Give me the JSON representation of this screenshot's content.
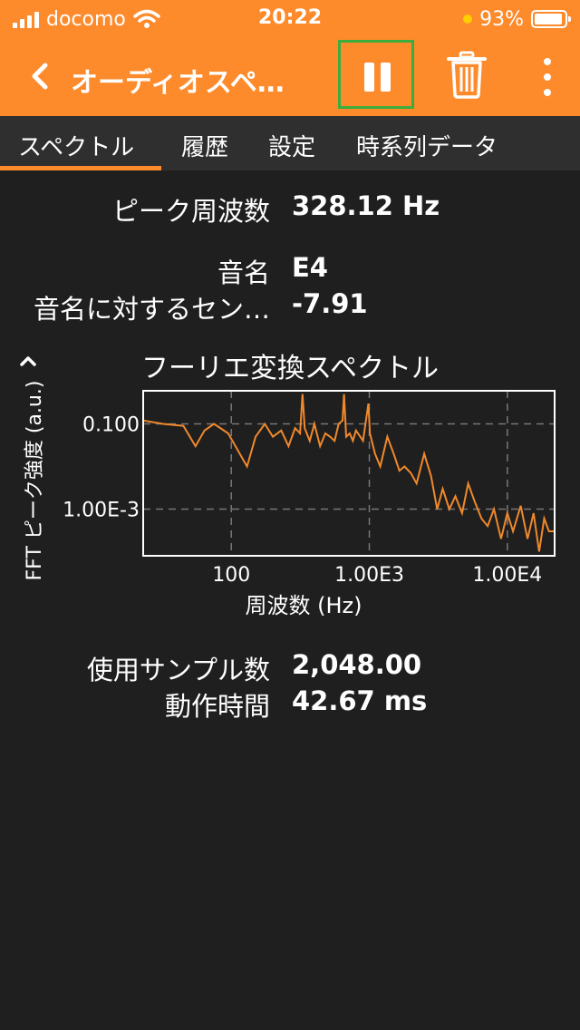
{
  "status_bar": {
    "carrier": "docomo",
    "time": "20:22",
    "battery_percent": "93%",
    "battery_level": 0.93
  },
  "app_bar": {
    "title": "オーディオスペ…",
    "back_icon": "chevron-left-icon",
    "pause_icon": "pause-icon",
    "trash_icon": "trash-icon",
    "more_icon": "more-vertical-icon",
    "accent_color": "#fd8a2b",
    "highlight_color": "#3cad3c"
  },
  "tabs": [
    {
      "label": "スペクトル",
      "active": true
    },
    {
      "label": "履歴",
      "active": false
    },
    {
      "label": "設定",
      "active": false
    },
    {
      "label": "時系列データ",
      "active": false
    }
  ],
  "readouts": {
    "peak_frequency": {
      "label": "ピーク周波数",
      "value": "328.12 Hz"
    },
    "note_name": {
      "label": "音名",
      "value": "E4"
    },
    "cents": {
      "label": "音名に対するセン…",
      "value": "-7.91"
    },
    "samples": {
      "label": "使用サンプル数",
      "value": "2,048.00"
    },
    "duration": {
      "label": "動作時間",
      "value": "42.67 ms"
    }
  },
  "chart_data": {
    "type": "line",
    "title": "フーリエ変換スペクトル",
    "xlabel": "周波数 (Hz)",
    "ylabel": "FFT ピーク強度 (a.u.)",
    "x_scale": "log",
    "y_scale": "log",
    "xlim": [
      23,
      22000
    ],
    "ylim": [
      8e-05,
      0.6
    ],
    "x_ticks": [
      {
        "value": 100,
        "label": "100"
      },
      {
        "value": 1000,
        "label": "1.00E3"
      },
      {
        "value": 10000,
        "label": "1.00E4"
      }
    ],
    "y_ticks": [
      {
        "value": 0.1,
        "label": "0.100"
      },
      {
        "value": 0.001,
        "label": "1.00E-3"
      }
    ],
    "grid": true,
    "line_color": "#f0892c",
    "series": [
      {
        "x": [
          23,
          32,
          45,
          55,
          64,
          75,
          95,
          130,
          150,
          175,
          200,
          230,
          260,
          290,
          315,
          328,
          340,
          370,
          400,
          440,
          480,
          520,
          560,
          600,
          640,
          656,
          680,
          720,
          760,
          800,
          860,
          900,
          984,
          1010,
          1100,
          1200,
          1350,
          1500,
          1650,
          1800,
          2000,
          2200,
          2500,
          2800,
          3100,
          3400,
          3800,
          4200,
          4700,
          5200,
          5800,
          6500,
          7200,
          8000,
          9000,
          10000,
          11000,
          12500,
          14000,
          15500,
          17000,
          18500,
          20000,
          22000
        ],
        "y": [
          0.12,
          0.1,
          0.09,
          0.03,
          0.07,
          0.1,
          0.06,
          0.01,
          0.05,
          0.1,
          0.05,
          0.07,
          0.03,
          0.08,
          0.06,
          0.5,
          0.08,
          0.04,
          0.1,
          0.03,
          0.06,
          0.05,
          0.04,
          0.1,
          0.12,
          0.5,
          0.05,
          0.06,
          0.04,
          0.07,
          0.05,
          0.04,
          0.3,
          0.06,
          0.02,
          0.01,
          0.05,
          0.02,
          0.008,
          0.01,
          0.007,
          0.004,
          0.02,
          0.006,
          0.001,
          0.003,
          0.001,
          0.002,
          0.0008,
          0.004,
          0.0015,
          0.0006,
          0.0004,
          0.001,
          0.0002,
          0.0008,
          0.0003,
          0.0012,
          0.0002,
          0.0008,
          0.0001,
          0.0006,
          0.0003,
          0.0003
        ]
      }
    ]
  }
}
